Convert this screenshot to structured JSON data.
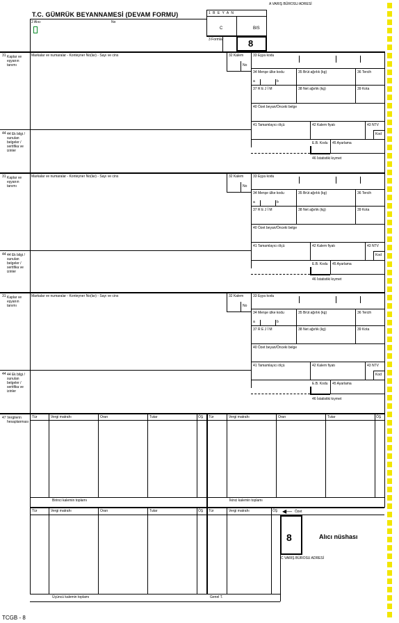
{
  "header": {
    "title": "T.C. GÜMRÜK BEYANNAMESİ (DEVAM FORMU)",
    "decl_letters": "1  B  E  Y  A  N",
    "decl_c": "C",
    "decl_bis": "BIS",
    "copy_number": "8",
    "top_label": "A VARIŞ BÜROSU ADRESİ",
    "box2_label": "2 Alıcı",
    "no_label": "No",
    "box3_label": "3 Formlar"
  },
  "items": [
    {
      "side_num": "31",
      "side_label": "Kaplar ve eşyanın tanımı",
      "desc": "Markalar ve numaralar - Konteyner No(lar) - Sayı ve cins",
      "kalem": "32 Kalem",
      "kalem_no": "No",
      "esya_kodu": "33 Eşya kodu",
      "mensei_ulke": "34 Menşe ülke kodu",
      "brut": "35 Brüt ağırlık (kg)",
      "tercih": "36 Tercih",
      "rejim": "37 R E J İ M",
      "net": "38 Net ağırlık (kg)",
      "kota": "39 Kota",
      "ozet_beyan": "40 Özet beyan/Önceki belge",
      "tamamlayici": "41 Tamamlayıcı ölçü",
      "kalem_fiyati": "42 Kalem fiyatı",
      "ntv": "43 NTV",
      "kod": "Kod",
      "ek_bilgi_label": "44 Ek bilgi / sunulan belgeler / sertifika ve izinler",
      "ek_kod": "E.B. Kodu",
      "ayarlama": "45 Ayarlama",
      "istatistiki": "46 İstatistiki kıymet"
    },
    {
      "side_num": "31",
      "side_label": "Kaplar ve eşyanın tanımı",
      "desc": "Markalar ve numaralar - Konteyner No(lar) - Sayı ve cins",
      "kalem": "32 Kalem",
      "kalem_no": "No",
      "esya_kodu": "33 Eşya kodu",
      "mensei_ulke": "34 Menşe ülke kodu",
      "brut": "35 Brüt ağırlık (kg)",
      "tercih": "36 Tercih",
      "rejim": "37 R E J İ M",
      "net": "38 Net ağırlık (kg)",
      "kota": "39 Kota",
      "ozet_beyan": "40 Özet beyan/Önceki belge",
      "tamamlayici": "41 Tamamlayıcı ölçü",
      "kalem_fiyati": "42 Kalem fiyatı",
      "ntv": "43 NTV",
      "kod": "Kod",
      "ek_bilgi_label": "44 Ek bilgi / sunulan belgeler / sertifika ve izinler",
      "ek_kod": "E.B. Kodu",
      "ayarlama": "45 Ayarlama",
      "istatistiki": "46 İstatistiki kıymet"
    },
    {
      "side_num": "31",
      "side_label": "Kaplar ve eşyanın tanımı",
      "desc": "Markalar ve numaralar - Konteyner No(lar) - Sayı ve cins",
      "kalem": "32 Kalem",
      "kalem_no": "No",
      "esya_kodu": "33 Eşya kodu",
      "mensei_ulke": "34 Menşe ülke kodu",
      "brut": "35 Brüt ağırlık (kg)",
      "tercih": "36 Tercih",
      "rejim": "37 R E J İ M",
      "net": "38 Net ağırlık (kg)",
      "kota": "39 Kota",
      "ozet_beyan": "40 Özet beyan/Önceki belge",
      "tamamlayici": "41 Tamamlayıcı ölçü",
      "kalem_fiyati": "42 Kalem fiyatı",
      "ntv": "43 NTV",
      "kod": "Kod",
      "ek_bilgi_label": "44 Ek bilgi / sunulan belgeler / sertifika ve izinler",
      "ek_kod": "E.B. Kodu",
      "ayarlama": "45 Ayarlama",
      "istatistiki": "46 İstatistiki kıymet"
    }
  ],
  "taxes": {
    "side_num": "47",
    "side_label": "Vergilerin hesaplanması",
    "col_tur": "Tür",
    "col_matrah": "Vergi matrahı",
    "col_oran": "Oran",
    "col_tutar": "Tutar",
    "col_os": "ÖŞ",
    "birinci_toplam": "Birinci kalemin toplamı",
    "ikinci_toplam": "İkinci kalemin toplamı",
    "ucuncu_toplam": "Üçüncü kalemin toplamı",
    "genel": "Genel T.",
    "ozet": "Özet",
    "copy_number_bottom": "8",
    "copy_name": "Alıcı nüshası",
    "bottom_office": "C VARIŞ BÜROSU ADRESİ"
  },
  "footer": {
    "code": "TCGB - 8"
  }
}
